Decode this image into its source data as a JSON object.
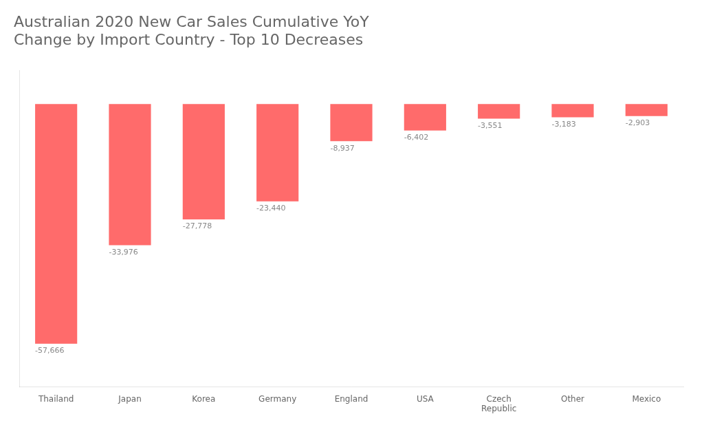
{
  "chart_data": {
    "type": "bar",
    "title": "Australian 2020 New Car Sales Cumulative YoY\nChange by Import Country - Top 10 Decreases",
    "categories": [
      "Thailand",
      "Japan",
      "Korea",
      "Germany",
      "England",
      "USA",
      "Czech\nRepublic",
      "Other",
      "Mexico"
    ],
    "values": [
      -57666,
      -33976,
      -27778,
      -23440,
      -8937,
      -6402,
      -3551,
      -3183,
      -2903
    ],
    "value_labels": [
      "-57,666",
      "-33,976",
      "-27,778",
      "-23,440",
      "-8,937",
      "-6,402",
      "-3,551",
      "-3,183",
      "-2,903"
    ],
    "data_labels": true,
    "color": "#FF6B6B",
    "ylim": [
      -68000,
      8000
    ],
    "tick_labels": "x",
    "grid": false
  }
}
